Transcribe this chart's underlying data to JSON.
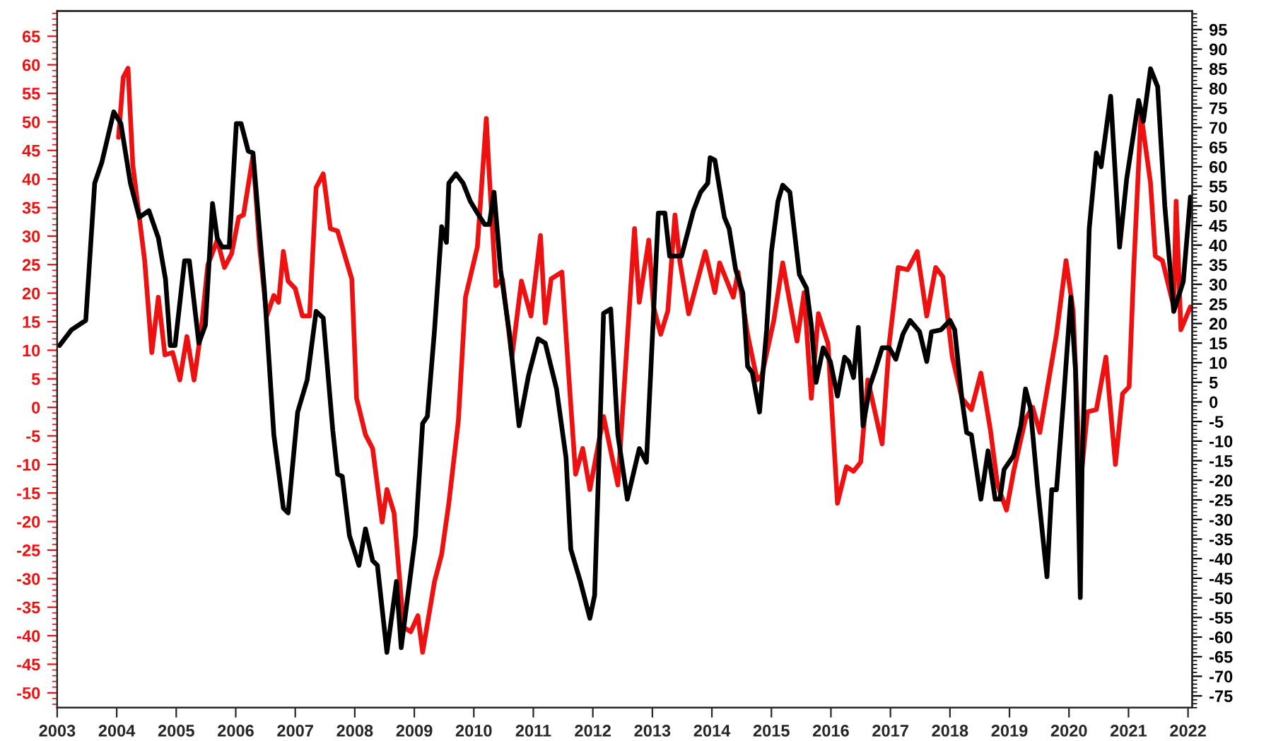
{
  "chart_data": {
    "type": "line",
    "xlim": [
      2003,
      2022.07
    ],
    "xticks": [
      2003,
      2004,
      2005,
      2006,
      2007,
      2008,
      2009,
      2010,
      2011,
      2012,
      2013,
      2014,
      2015,
      2016,
      2017,
      2018,
      2019,
      2020,
      2021,
      2022
    ],
    "ylim": [
      -52.6,
      69.4
    ],
    "yticks": [
      -50,
      -45,
      -40,
      -35,
      -30,
      -25,
      -20,
      -15,
      -10,
      -5,
      0,
      5,
      10,
      15,
      20,
      25,
      30,
      35,
      40,
      45,
      50,
      55,
      60,
      65
    ],
    "y2lim": [
      -78,
      99.7
    ],
    "y2ticks": [
      -75,
      -70,
      -65,
      -60,
      -55,
      -50,
      -45,
      -40,
      -35,
      -30,
      -25,
      -20,
      -15,
      -10,
      -5,
      0,
      5,
      10,
      15,
      20,
      25,
      30,
      35,
      40,
      45,
      50,
      55,
      60,
      65,
      70,
      75,
      80,
      85,
      90,
      95
    ],
    "grid": false,
    "legend": false,
    "series": [
      {
        "color": "#000000",
        "axis": "y2",
        "x": [
          2003.04,
          2003.24,
          2003.48,
          2003.63,
          2003.75,
          2003.95,
          2004.07,
          2004.23,
          2004.38,
          2004.54,
          2004.7,
          2004.82,
          2004.9,
          2004.98,
          2005.14,
          2005.22,
          2005.38,
          2005.49,
          2005.61,
          2005.69,
          2005.77,
          2005.89,
          2006.01,
          2006.09,
          2006.21,
          2006.29,
          2006.48,
          2006.64,
          2006.8,
          2006.88,
          2007.04,
          2007.2,
          2007.35,
          2007.47,
          2007.63,
          2007.71,
          2007.79,
          2007.91,
          2008.07,
          2008.18,
          2008.3,
          2008.38,
          2008.54,
          2008.7,
          2008.78,
          2009.02,
          2009.14,
          2009.22,
          2009.34,
          2009.46,
          2009.54,
          2009.58,
          2009.7,
          2009.82,
          2009.94,
          2010.06,
          2010.18,
          2010.26,
          2010.34,
          2010.45,
          2010.6,
          2010.76,
          2010.92,
          2011.08,
          2011.2,
          2011.39,
          2011.55,
          2011.63,
          2011.79,
          2011.95,
          2012.03,
          2012.18,
          2012.3,
          2012.42,
          2012.58,
          2012.78,
          2012.9,
          2013.1,
          2013.21,
          2013.29,
          2013.49,
          2013.69,
          2013.81,
          2013.93,
          2013.97,
          2014.05,
          2014.21,
          2014.29,
          2014.4,
          2014.52,
          2014.6,
          2014.68,
          2014.8,
          2014.92,
          2015.0,
          2015.11,
          2015.19,
          2015.31,
          2015.47,
          2015.59,
          2015.67,
          2015.75,
          2015.87,
          2015.99,
          2016.11,
          2016.23,
          2016.3,
          2016.38,
          2016.46,
          2016.54,
          2016.66,
          2016.74,
          2016.86,
          2016.98,
          2017.09,
          2017.21,
          2017.33,
          2017.49,
          2017.61,
          2017.69,
          2017.85,
          2018.0,
          2018.08,
          2018.2,
          2018.28,
          2018.36,
          2018.52,
          2018.64,
          2018.76,
          2018.84,
          2018.91,
          2019.07,
          2019.19,
          2019.27,
          2019.35,
          2019.47,
          2019.63,
          2019.71,
          2019.79,
          2019.91,
          2020.03,
          2020.11,
          2020.19,
          2020.22,
          2020.34,
          2020.46,
          2020.54,
          2020.7,
          2020.85,
          2020.97,
          2021.17,
          2021.25,
          2021.37,
          2021.49,
          2021.61,
          2021.76,
          2021.92,
          2022.04
        ],
        "values": [
          14.4,
          18.4,
          20.8,
          55.8,
          61.1,
          74,
          71,
          55.8,
          47.1,
          48.8,
          41.8,
          31.3,
          14.4,
          14.4,
          36,
          36,
          15,
          19.6,
          50.6,
          41.8,
          39.5,
          39.5,
          71,
          71,
          64,
          63.5,
          29,
          -8.4,
          -27.1,
          -28.3,
          -2.6,
          5.6,
          23.1,
          21.4,
          -7.2,
          -18.4,
          -19,
          -34.1,
          -41.7,
          -32.4,
          -40.5,
          -41.7,
          -63.9,
          -45.8,
          -62.7,
          -34.1,
          -5.5,
          -3.7,
          18.4,
          44.7,
          40.7,
          55.8,
          58.2,
          55.8,
          51.2,
          48.2,
          45.3,
          45.3,
          53.5,
          33.7,
          17.3,
          -6.1,
          6.8,
          16.1,
          15,
          3.3,
          -14.3,
          -37.6,
          -45.8,
          -55.2,
          -49.3,
          22.6,
          23.7,
          -8.4,
          -24.8,
          -11.9,
          -15.4,
          48.2,
          48.2,
          37.2,
          37.2,
          48.8,
          53.5,
          55.8,
          62.3,
          61.7,
          47.1,
          44.2,
          33.7,
          27.8,
          9.1,
          7.4,
          -2.6,
          18.4,
          38.3,
          51.2,
          55.3,
          53.5,
          32.5,
          29,
          19.6,
          5,
          13.8,
          10.3,
          1.5,
          11.4,
          10.3,
          6.2,
          19,
          -6.1,
          4.4,
          7.9,
          13.8,
          13.8,
          10.9,
          17.3,
          20.8,
          17.9,
          10.3,
          17.9,
          18.4,
          20.8,
          18.4,
          0.9,
          -7.8,
          -8.4,
          -24.8,
          -12.5,
          -24.8,
          -24.8,
          -17.2,
          -13.7,
          -6.1,
          3.3,
          -1.4,
          -21.3,
          -44.6,
          -22.4,
          -22.4,
          0.9,
          26.7,
          7.9,
          -49.9,
          -16.6,
          44.2,
          63.5,
          60,
          78,
          39.5,
          57,
          76.9,
          71.6,
          85,
          80.4,
          50,
          23.1,
          30.7,
          52.3
        ]
      },
      {
        "color": "#ee1111",
        "x": [
          2004.03,
          2004.11,
          2004.19,
          2004.27,
          2004.47,
          2004.59,
          2004.7,
          2004.81,
          2004.94,
          2005.06,
          2005.18,
          2005.3,
          2005.42,
          2005.53,
          2005.69,
          2005.81,
          2005.93,
          2006.05,
          2006.13,
          2006.29,
          2006.4,
          2006.52,
          2006.64,
          2006.72,
          2006.8,
          2006.88,
          2007.0,
          2007.12,
          2007.24,
          2007.35,
          2007.47,
          2007.59,
          2007.71,
          2007.95,
          2008.03,
          2008.18,
          2008.3,
          2008.46,
          2008.54,
          2008.66,
          2008.82,
          2008.94,
          2009.06,
          2009.14,
          2009.34,
          2009.46,
          2009.58,
          2009.74,
          2009.86,
          2010.06,
          2010.21,
          2010.25,
          2010.37,
          2010.48,
          2010.64,
          2010.8,
          2010.96,
          2011.12,
          2011.2,
          2011.3,
          2011.48,
          2011.59,
          2011.71,
          2011.83,
          2011.95,
          2012.18,
          2012.42,
          2012.7,
          2012.78,
          2012.94,
          2013.02,
          2013.14,
          2013.26,
          2013.38,
          2013.46,
          2013.61,
          2013.89,
          2014.05,
          2014.13,
          2014.36,
          2014.44,
          2014.6,
          2014.76,
          2014.84,
          2015.04,
          2015.19,
          2015.31,
          2015.43,
          2015.55,
          2015.67,
          2015.79,
          2015.95,
          2016.11,
          2016.26,
          2016.38,
          2016.5,
          2016.62,
          2016.74,
          2016.86,
          2016.98,
          2017.13,
          2017.29,
          2017.45,
          2017.61,
          2017.76,
          2017.88,
          2018.04,
          2018.2,
          2018.36,
          2018.52,
          2018.68,
          2018.8,
          2018.95,
          2019.07,
          2019.27,
          2019.39,
          2019.51,
          2019.79,
          2019.95,
          2020.07,
          2020.19,
          2020.31,
          2020.46,
          2020.62,
          2020.78,
          2020.9,
          2021.01,
          2021.09,
          2021.21,
          2021.37,
          2021.45,
          2021.57,
          2021.76,
          2021.8,
          2021.88,
          2022.04
        ],
        "values": [
          47.3,
          57.8,
          59.4,
          42.5,
          25.7,
          9.6,
          19.3,
          9.2,
          9.6,
          4.8,
          12.4,
          4.8,
          13.6,
          24.9,
          29.3,
          24.5,
          26.9,
          33.3,
          33.7,
          44.1,
          28.1,
          16,
          19.6,
          18.4,
          27.3,
          22.1,
          20.8,
          16,
          16,
          38.5,
          40.9,
          31.3,
          30.9,
          22.5,
          1.6,
          -4.8,
          -7.2,
          -20.1,
          -14.4,
          -18.5,
          -38.5,
          -39.3,
          -36.5,
          -42.9,
          -30.5,
          -25.7,
          -16.8,
          -2.4,
          19.3,
          28.1,
          50.6,
          42.5,
          21.3,
          22.5,
          8.8,
          22.1,
          16,
          30.1,
          14.8,
          22.5,
          23.7,
          6.4,
          -11.7,
          -7.2,
          -14.4,
          -1.6,
          -13.6,
          31.3,
          18.4,
          29.3,
          17.6,
          12.8,
          16.9,
          33.7,
          25.7,
          16.4,
          27.3,
          20.1,
          25.3,
          19.3,
          23.7,
          12.8,
          4.8,
          5.6,
          15.2,
          25.3,
          18.4,
          11.6,
          20.1,
          1.6,
          16.4,
          11.2,
          -16.8,
          -10.4,
          -11.2,
          -9.6,
          4.8,
          -0.8,
          -6.4,
          11.2,
          24.5,
          24.1,
          27.3,
          16,
          24.5,
          22.9,
          8.8,
          1.6,
          -0.4,
          6,
          -4,
          -13.6,
          -18,
          -11.2,
          -2,
          0,
          -4.4,
          12.8,
          25.7,
          16.9,
          -13.6,
          -0.8,
          -0.4,
          8.8,
          -10,
          2.4,
          3.6,
          24.9,
          51.4,
          39.3,
          26.5,
          25.7,
          17.6,
          36.1,
          13.6,
          17.6
        ]
      }
    ]
  }
}
